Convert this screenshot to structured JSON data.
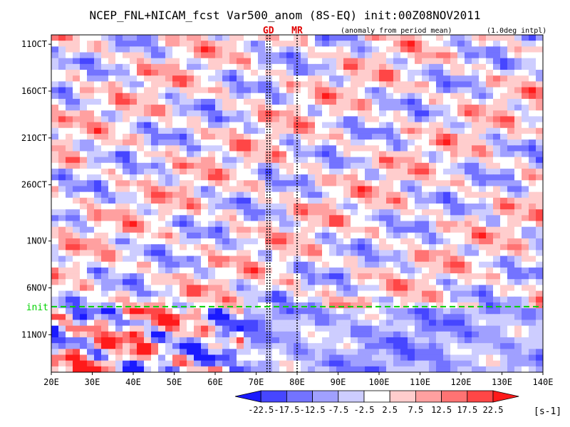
{
  "chart_data": {
    "type": "heatmap",
    "title": "NCEP_FNL+NICAM_fcst Var500_anom (8S-EQ) init:00Z08NOV2011",
    "subtitle_left": "(anomaly from period mean)",
    "subtitle_right": "(1.0deg intpl)",
    "x_ticks": [
      "20E",
      "30E",
      "40E",
      "50E",
      "60E",
      "70E",
      "80E",
      "90E",
      "100E",
      "110E",
      "120E",
      "130E",
      "140E"
    ],
    "x_range": [
      20,
      140
    ],
    "y_ticks": [
      "11OCT",
      "16OCT",
      "21OCT",
      "26OCT",
      "1NOV",
      "6NOV",
      "11NOV"
    ],
    "y_range_days": [
      "10OCT2011",
      "15NOV2011"
    ],
    "init_label": "init",
    "init_date": "08NOV2011",
    "markers": [
      {
        "label": "GD",
        "lon": 73
      },
      {
        "label": "MR",
        "lon": 80
      }
    ],
    "colorbar": {
      "levels": [
        "-22.5",
        "-17.5",
        "-12.5",
        "-7.5",
        "-2.5",
        "2.5",
        "7.5",
        "12.5",
        "17.5",
        "22.5"
      ],
      "unit": "[s-1]",
      "colors": [
        "#1a1aff",
        "#4646ff",
        "#7373ff",
        "#a0a0ff",
        "#cdcdff",
        "#ffffff",
        "#ffcdcd",
        "#ffa0a0",
        "#ff7373",
        "#ff4646",
        "#ff1a1a"
      ]
    },
    "colors": {
      "init_line": "#00d200",
      "marker_label": "#e00000"
    }
  }
}
